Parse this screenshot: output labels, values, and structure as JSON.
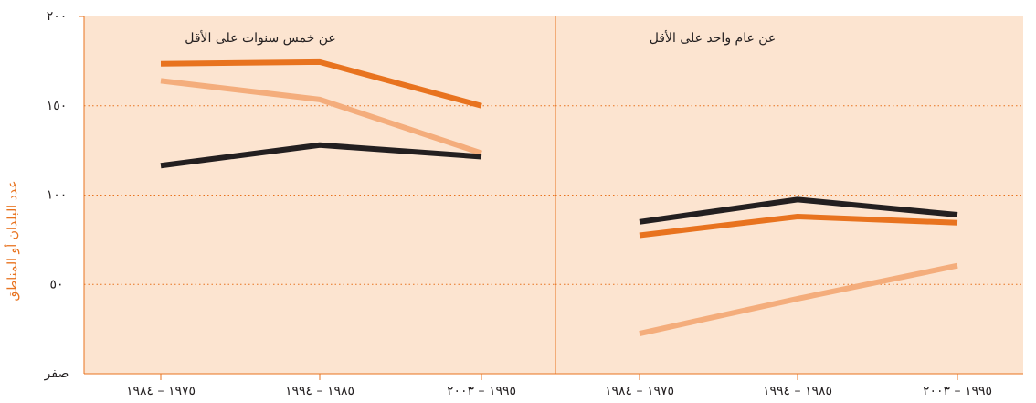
{
  "chart_data": [
    {
      "type": "line",
      "title": "عن خمس سنوات على الأقل",
      "y_label": "عدد البلدان أو المناطق",
      "categories": [
        "١٩٧٥ – ١٩٨٤",
        "١٩٨٥ – ١٩٩٤",
        "١٩٩٥ – ٢٠٠٣"
      ],
      "series": [
        {
          "color": "#e8731f",
          "values": [
            173.5,
            174.5,
            150
          ]
        },
        {
          "color": "#f4ad7c",
          "values": [
            164,
            153.5,
            123.5
          ]
        },
        {
          "color": "#231f20",
          "values": [
            116.5,
            128,
            121.5
          ]
        }
      ],
      "ylim": [
        0,
        200
      ],
      "yticks": [
        {
          "value": 0,
          "label": "صفر"
        },
        {
          "value": 50,
          "label": "٥٠"
        },
        {
          "value": 100,
          "label": "١٠٠"
        },
        {
          "value": 150,
          "label": "١٥٠"
        },
        {
          "value": 200,
          "label": "٢٠٠"
        }
      ],
      "grid": true
    },
    {
      "type": "line",
      "title": "عن عام واحد على الأقل",
      "categories": [
        "١٩٧٥ – ١٩٨٤",
        "١٩٨٥ – ١٩٩٤",
        "١٩٩٥ – ٢٠٠٣"
      ],
      "series": [
        {
          "color": "#231f20",
          "values": [
            85,
            97.5,
            89
          ]
        },
        {
          "color": "#e8731f",
          "values": [
            77.5,
            88,
            84.5
          ]
        },
        {
          "color": "#f4ad7c",
          "values": [
            22.5,
            42,
            60.5
          ]
        }
      ],
      "ylim": [
        0,
        200
      ],
      "grid": true
    }
  ]
}
